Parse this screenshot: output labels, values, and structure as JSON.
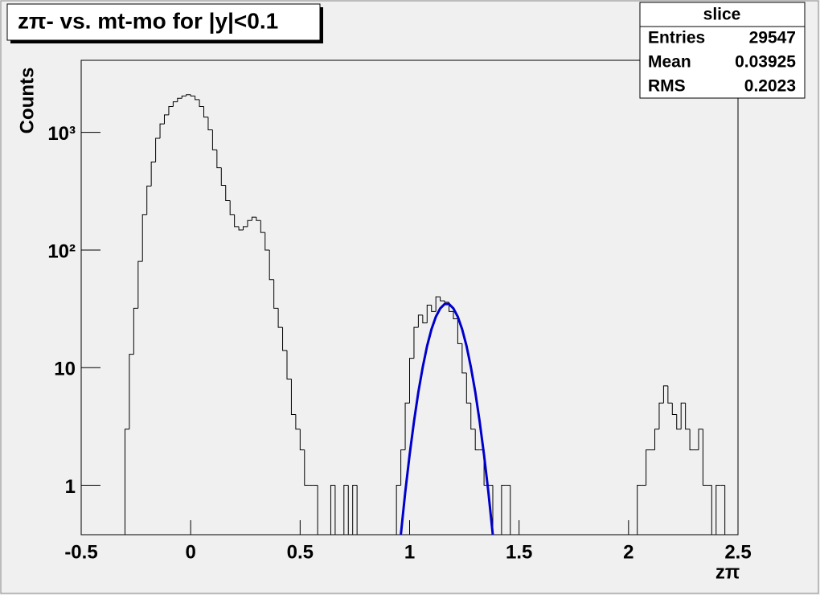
{
  "chart_data": {
    "type": "histogram",
    "title": "zπ- vs. mt-mo for |y|<0.1",
    "x_label": "zπ",
    "y_label": "Counts",
    "stats": {
      "title": "slice",
      "rows": [
        [
          "Entries",
          29547
        ],
        [
          "Mean",
          0.03925
        ],
        [
          "RMS",
          0.2023
        ]
      ]
    },
    "bins": [
      -0.5,
      -0.48,
      -0.46,
      -0.44,
      -0.42,
      -0.4,
      -0.38,
      -0.36,
      -0.34,
      -0.32,
      -0.3,
      -0.28,
      -0.26,
      -0.24,
      -0.22,
      -0.2,
      -0.18,
      -0.16,
      -0.14,
      -0.12,
      -0.1,
      -0.08,
      -0.06,
      -0.04,
      -0.02,
      0,
      0.02,
      0.04,
      0.06,
      0.08,
      0.1,
      0.12,
      0.14,
      0.16,
      0.18,
      0.2,
      0.22,
      0.24,
      0.26,
      0.28,
      0.3,
      0.32,
      0.34,
      0.36,
      0.38,
      0.4,
      0.42,
      0.44,
      0.46,
      0.48,
      0.5,
      0.52,
      0.54,
      0.56,
      0.58,
      0.6,
      0.62,
      0.64,
      0.66,
      0.68,
      0.7,
      0.72,
      0.74,
      0.76,
      0.78,
      0.8,
      0.82,
      0.84,
      0.86,
      0.88,
      0.9,
      0.92,
      0.94,
      0.96,
      0.98,
      1,
      1.02,
      1.04,
      1.06,
      1.08,
      1.1,
      1.12,
      1.14,
      1.16,
      1.18,
      1.2,
      1.22,
      1.24,
      1.26,
      1.28,
      1.3,
      1.32,
      1.34,
      1.36,
      1.38,
      1.4,
      1.42,
      1.44,
      1.46,
      1.48,
      1.5,
      1.52,
      1.54,
      1.56,
      1.58,
      1.6,
      1.62,
      1.64,
      1.66,
      1.68,
      1.7,
      1.72,
      1.74,
      1.76,
      1.78,
      1.8,
      1.82,
      1.84,
      1.86,
      1.88,
      1.9,
      1.92,
      1.94,
      1.96,
      1.98,
      2,
      2.02,
      2.04,
      2.06,
      2.08,
      2.1,
      2.12,
      2.14,
      2.16,
      2.18,
      2.2,
      2.22,
      2.24,
      2.26,
      2.28,
      2.3,
      2.32,
      2.34,
      2.36,
      2.38,
      2.4,
      2.42,
      2.44,
      2.46,
      2.48,
      2.5
    ],
    "counts": [
      0,
      0,
      0,
      0,
      0,
      0,
      0,
      0,
      0,
      0,
      3,
      13,
      32,
      80,
      200,
      350,
      560,
      890,
      1180,
      1410,
      1660,
      1820,
      1950,
      2040,
      2090,
      2040,
      1900,
      1660,
      1350,
      1050,
      710,
      500,
      355,
      263,
      200,
      158,
      148,
      158,
      178,
      190,
      178,
      141,
      100,
      56,
      32,
      22,
      14,
      8,
      4,
      3,
      2,
      1,
      1,
      1,
      0,
      0,
      0,
      1,
      0,
      0,
      1,
      0,
      1,
      0,
      0,
      0,
      0,
      0,
      0,
      0,
      0,
      0,
      1,
      2,
      5,
      12,
      22,
      28,
      24,
      34,
      30,
      40,
      37,
      36,
      30,
      26,
      16,
      9,
      5,
      3,
      2,
      2,
      1,
      1,
      0,
      0,
      1,
      1,
      0,
      0,
      0,
      0,
      0,
      0,
      0,
      0,
      0,
      0,
      0,
      0,
      0,
      0,
      0,
      0,
      0,
      0,
      0,
      0,
      0,
      0,
      0,
      0,
      0,
      0,
      0,
      0,
      0,
      1,
      1,
      2,
      2,
      3,
      5,
      7,
      5,
      4,
      3,
      5,
      3,
      2,
      2,
      3,
      1,
      1,
      0,
      1,
      1,
      0,
      0,
      0
    ],
    "color": "#000000",
    "fit": {
      "color": "#0000cc",
      "x": [
        0.96,
        0.98,
        1,
        1.02,
        1.04,
        1.06,
        1.08,
        1.1,
        1.12,
        1.14,
        1.16,
        1.18,
        1.2,
        1.22,
        1.24,
        1.26,
        1.28,
        1.3,
        1.32,
        1.34,
        1.36,
        1.38
      ],
      "y": [
        0.38,
        0.87,
        1.81,
        3.48,
        6.2,
        10.1,
        15.3,
        21.2,
        27.1,
        31.9,
        34.7,
        34.7,
        31.9,
        27.1,
        21.2,
        15.3,
        10.1,
        6.2,
        3.48,
        1.81,
        0.87,
        0.38
      ]
    },
    "xlim": [
      -0.5,
      2.5
    ],
    "xticks": [
      -0.5,
      0,
      0.5,
      1,
      1.5,
      2,
      2.5
    ],
    "ylim": [
      0.38,
      4100
    ],
    "yticks": [
      1,
      10,
      {
        "value": 100,
        "label": "10²"
      },
      {
        "value": 1000,
        "label": "10³"
      }
    ],
    "log_y": true
  }
}
